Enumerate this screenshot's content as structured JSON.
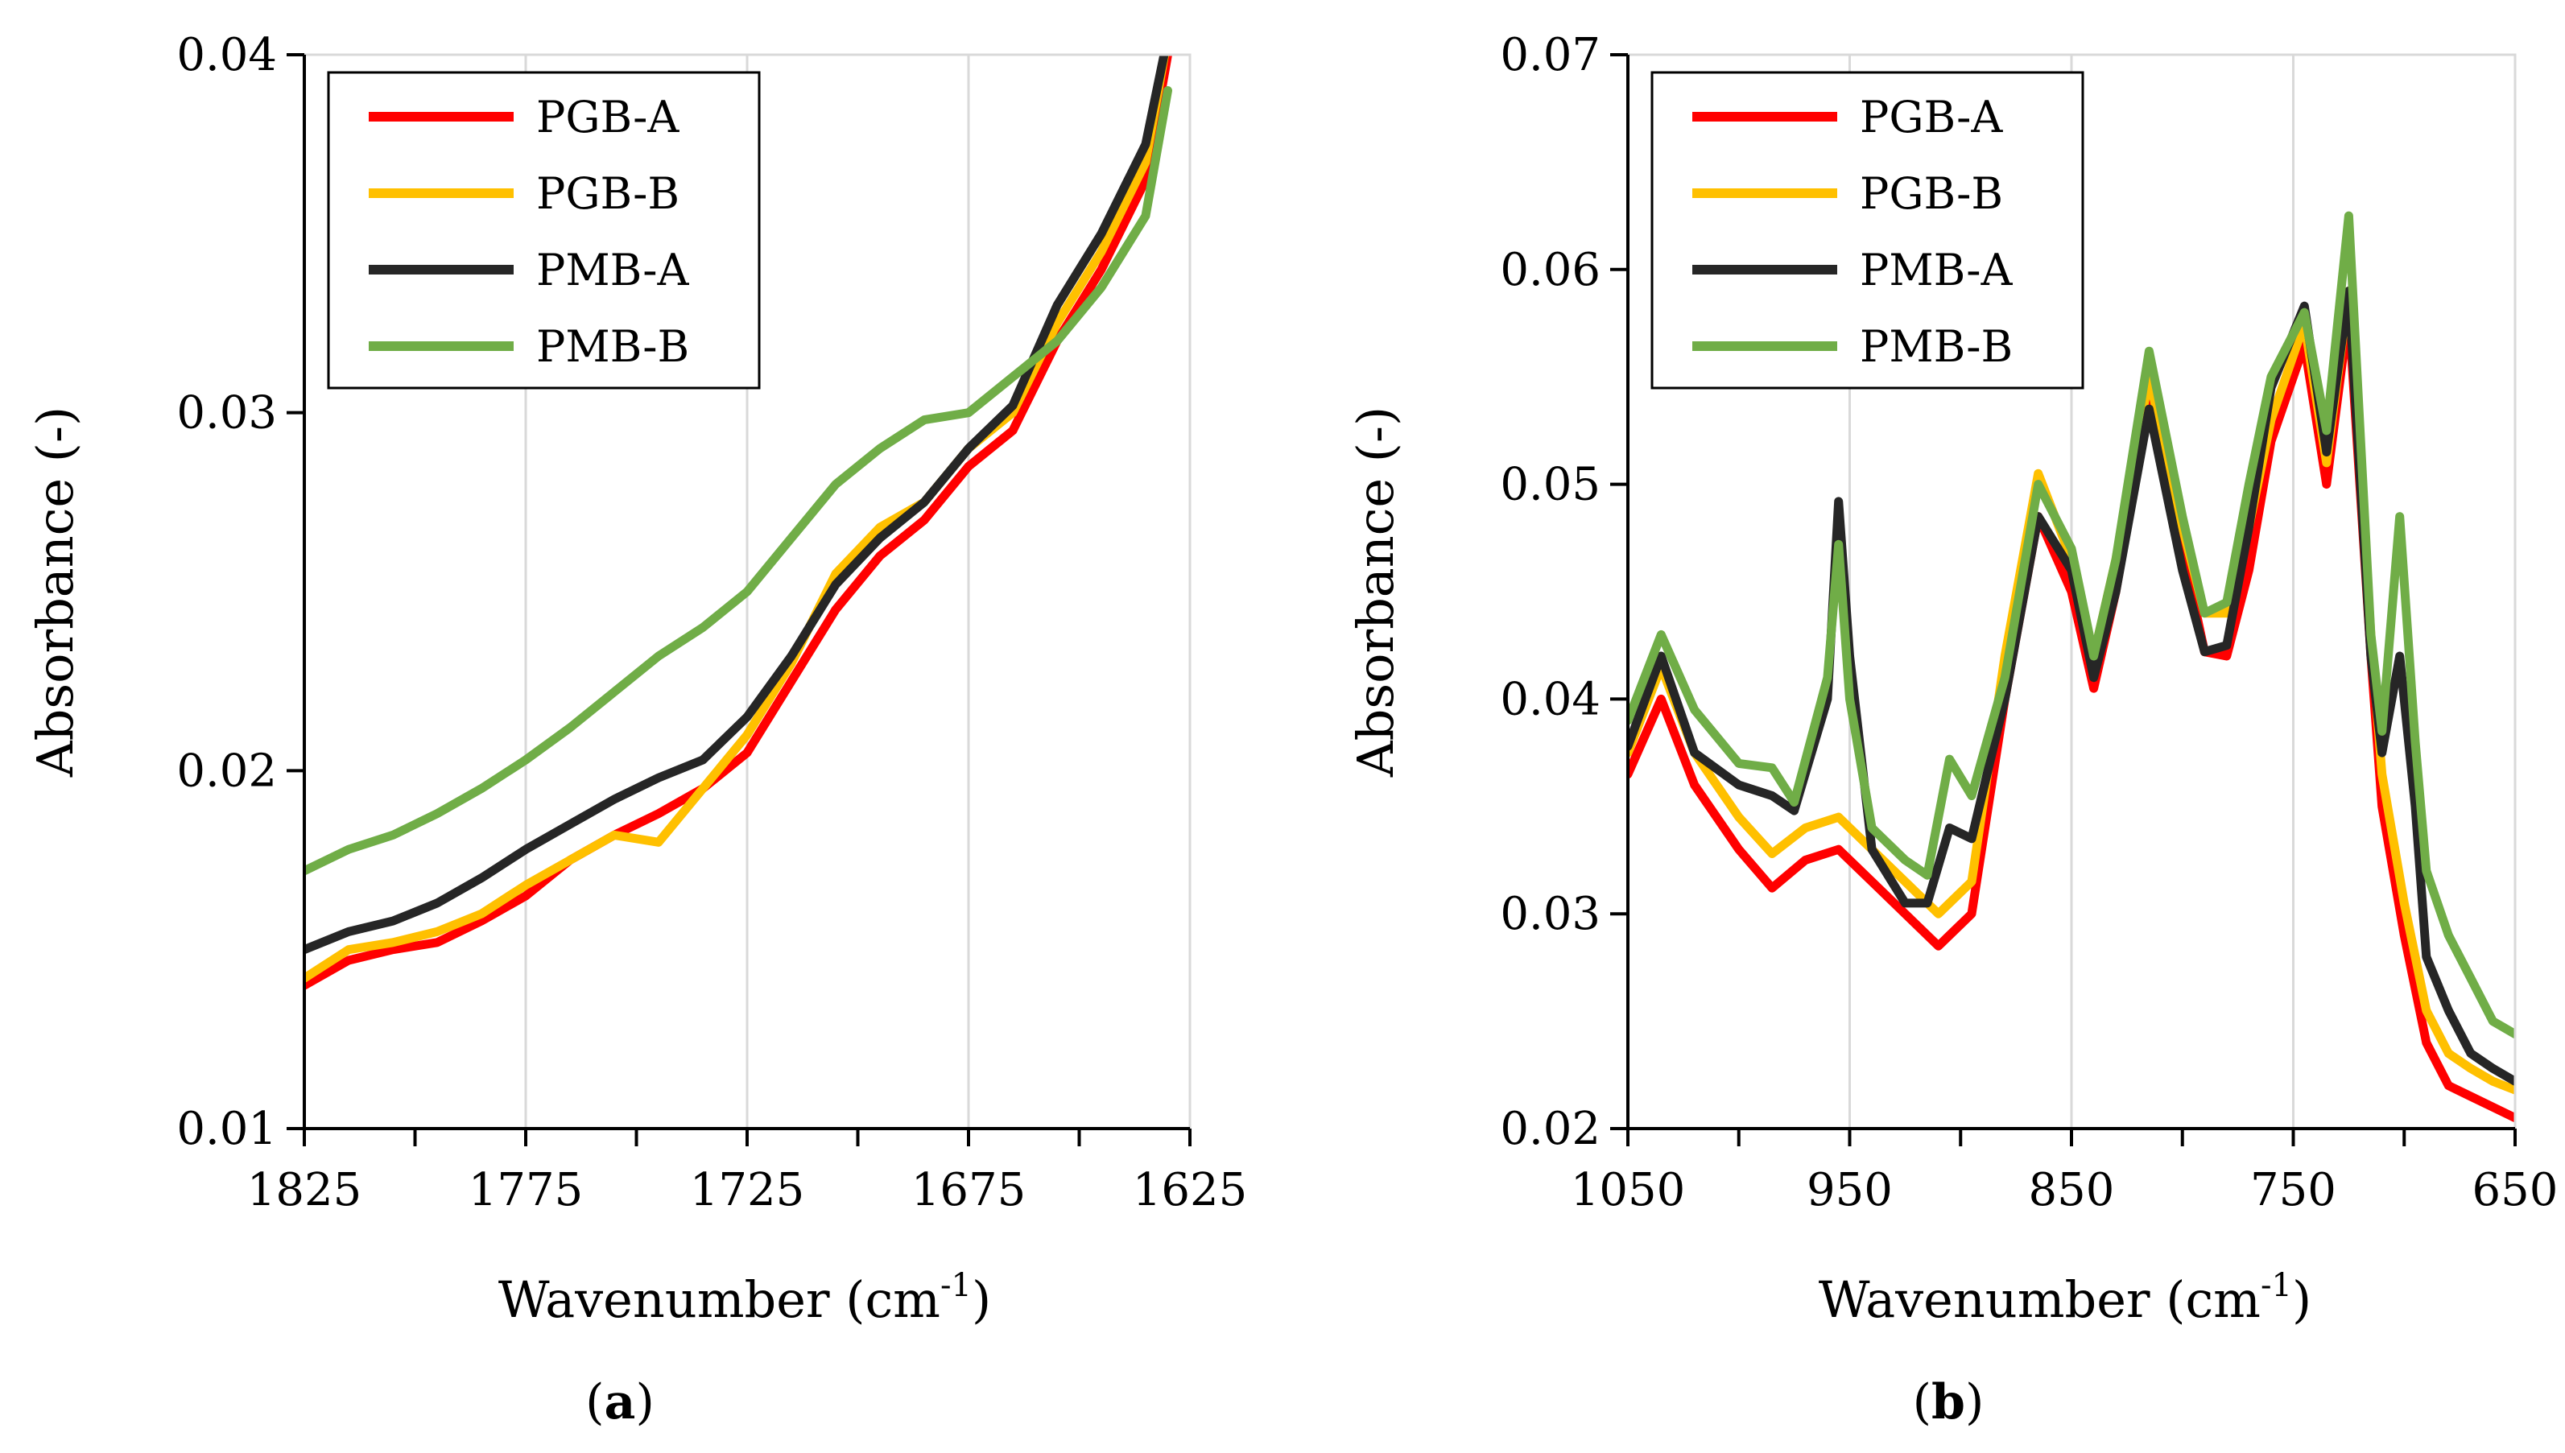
{
  "colors": {
    "PGB-A": "#ff0000",
    "PGB-B": "#ffc000",
    "PMB-A": "#262626",
    "PMB-B": "#70ad47",
    "grid": "#d9d9d9",
    "axis": "#000000"
  },
  "chart_data": [
    {
      "type": "line",
      "panel_label": "(a)",
      "panel_letter": "a",
      "xlabel": "Wavenumber (cm",
      "xlabel_sup": "-1",
      "xlabel_close": ")",
      "ylabel": "Absorbance (-)",
      "xlim": [
        1825,
        1625
      ],
      "ylim": [
        0.01,
        0.04
      ],
      "xticks": [
        1825,
        1775,
        1725,
        1675,
        1625
      ],
      "xtick_labels": [
        "1825",
        "1775",
        "1725",
        "1675",
        "1625"
      ],
      "yticks": [
        0.01,
        0.02,
        0.03,
        0.04
      ],
      "ytick_labels": [
        "0.01",
        "0.02",
        "0.03",
        "0.04"
      ],
      "grid": "vertical",
      "legend": "top-left",
      "legend_entries": [
        "PGB-A",
        "PGB-B",
        "PMB-A",
        "PMB-B"
      ],
      "series": [
        {
          "name": "PGB-A",
          "x": [
            1825,
            1815,
            1805,
            1795,
            1785,
            1775,
            1765,
            1755,
            1745,
            1735,
            1725,
            1715,
            1705,
            1695,
            1685,
            1675,
            1665,
            1655,
            1645,
            1635,
            1630
          ],
          "values": [
            0.014,
            0.0147,
            0.015,
            0.0152,
            0.0158,
            0.0165,
            0.0175,
            0.0182,
            0.0188,
            0.0195,
            0.0205,
            0.0225,
            0.0245,
            0.026,
            0.027,
            0.0285,
            0.0295,
            0.032,
            0.034,
            0.0365,
            0.04
          ]
        },
        {
          "name": "PGB-B",
          "x": [
            1825,
            1815,
            1805,
            1795,
            1785,
            1775,
            1765,
            1755,
            1745,
            1735,
            1725,
            1715,
            1705,
            1695,
            1685,
            1675,
            1665,
            1655,
            1645,
            1635,
            1630
          ],
          "values": [
            0.0142,
            0.015,
            0.0152,
            0.0155,
            0.016,
            0.0168,
            0.0175,
            0.0182,
            0.018,
            0.0195,
            0.021,
            0.023,
            0.0255,
            0.0268,
            0.0275,
            0.029,
            0.03,
            0.0325,
            0.0345,
            0.037,
            0.0405
          ]
        },
        {
          "name": "PMB-A",
          "x": [
            1825,
            1815,
            1805,
            1795,
            1785,
            1775,
            1765,
            1755,
            1745,
            1735,
            1725,
            1715,
            1705,
            1695,
            1685,
            1675,
            1665,
            1655,
            1645,
            1635,
            1630
          ],
          "values": [
            0.015,
            0.0155,
            0.0158,
            0.0163,
            0.017,
            0.0178,
            0.0185,
            0.0192,
            0.0198,
            0.0203,
            0.0215,
            0.0232,
            0.0252,
            0.0265,
            0.0275,
            0.029,
            0.0302,
            0.033,
            0.035,
            0.0375,
            0.0405
          ]
        },
        {
          "name": "PMB-B",
          "x": [
            1825,
            1815,
            1805,
            1795,
            1785,
            1775,
            1765,
            1755,
            1745,
            1735,
            1725,
            1715,
            1705,
            1695,
            1685,
            1675,
            1665,
            1655,
            1645,
            1635,
            1630
          ],
          "values": [
            0.0172,
            0.0178,
            0.0182,
            0.0188,
            0.0195,
            0.0203,
            0.0212,
            0.0222,
            0.0232,
            0.024,
            0.025,
            0.0265,
            0.028,
            0.029,
            0.0298,
            0.03,
            0.031,
            0.032,
            0.0335,
            0.0355,
            0.039
          ]
        }
      ]
    },
    {
      "type": "line",
      "panel_label": "(b)",
      "panel_letter": "b",
      "xlabel": "Wavenumber (cm",
      "xlabel_sup": "-1",
      "xlabel_close": ")",
      "ylabel": "Absorbance (-)",
      "xlim": [
        1050,
        650
      ],
      "ylim": [
        0.02,
        0.07
      ],
      "xticks": [
        1050,
        950,
        850,
        750,
        650
      ],
      "xtick_labels": [
        "1050",
        "950",
        "850",
        "750",
        "650"
      ],
      "yticks": [
        0.02,
        0.03,
        0.04,
        0.05,
        0.06,
        0.07
      ],
      "ytick_labels": [
        "0.02",
        "0.03",
        "0.04",
        "0.05",
        "0.06",
        "0.07"
      ],
      "grid": "vertical",
      "legend": "top-left",
      "legend_entries": [
        "PGB-A",
        "PGB-B",
        "PMB-A",
        "PMB-B"
      ],
      "series": [
        {
          "name": "PGB-A",
          "x": [
            1050,
            1035,
            1020,
            1000,
            985,
            970,
            955,
            940,
            925,
            910,
            895,
            880,
            865,
            850,
            840,
            830,
            815,
            800,
            790,
            780,
            770,
            760,
            745,
            735,
            725,
            715,
            710,
            700,
            690,
            680,
            670,
            660,
            650
          ],
          "values": [
            0.0365,
            0.04,
            0.036,
            0.033,
            0.0312,
            0.0325,
            0.033,
            0.0315,
            0.03,
            0.0285,
            0.03,
            0.04,
            0.0485,
            0.045,
            0.0405,
            0.045,
            0.054,
            0.047,
            0.0422,
            0.042,
            0.046,
            0.052,
            0.0565,
            0.05,
            0.058,
            0.042,
            0.035,
            0.029,
            0.024,
            0.022,
            0.0215,
            0.021,
            0.0205
          ]
        },
        {
          "name": "PGB-B",
          "x": [
            1050,
            1035,
            1020,
            1000,
            985,
            970,
            955,
            940,
            925,
            910,
            895,
            880,
            865,
            850,
            840,
            830,
            815,
            800,
            790,
            780,
            770,
            760,
            745,
            735,
            725,
            715,
            710,
            700,
            690,
            680,
            670,
            660,
            650
          ],
          "values": [
            0.0375,
            0.0415,
            0.0375,
            0.0345,
            0.0328,
            0.034,
            0.0345,
            0.033,
            0.0315,
            0.03,
            0.0315,
            0.042,
            0.0505,
            0.0465,
            0.042,
            0.0465,
            0.055,
            0.048,
            0.044,
            0.044,
            0.048,
            0.053,
            0.0575,
            0.051,
            0.059,
            0.043,
            0.0365,
            0.0305,
            0.0255,
            0.0235,
            0.0228,
            0.0222,
            0.0218
          ]
        },
        {
          "name": "PMB-A",
          "x": [
            1050,
            1035,
            1020,
            1000,
            985,
            975,
            960,
            955,
            950,
            940,
            925,
            915,
            905,
            895,
            880,
            865,
            850,
            840,
            830,
            815,
            800,
            790,
            780,
            770,
            760,
            745,
            735,
            725,
            715,
            710,
            702,
            695,
            690,
            680,
            670,
            660,
            650
          ],
          "values": [
            0.0378,
            0.042,
            0.0375,
            0.036,
            0.0355,
            0.0348,
            0.04,
            0.0492,
            0.042,
            0.033,
            0.0305,
            0.0305,
            0.034,
            0.0335,
            0.04,
            0.0485,
            0.046,
            0.041,
            0.045,
            0.0535,
            0.046,
            0.0422,
            0.0425,
            0.048,
            0.0545,
            0.0583,
            0.0515,
            0.059,
            0.042,
            0.0375,
            0.042,
            0.035,
            0.028,
            0.0255,
            0.0235,
            0.0228,
            0.0222
          ]
        },
        {
          "name": "PMB-B",
          "x": [
            1050,
            1035,
            1020,
            1000,
            985,
            975,
            960,
            955,
            950,
            940,
            925,
            915,
            905,
            895,
            880,
            865,
            850,
            840,
            830,
            815,
            800,
            790,
            780,
            770,
            760,
            745,
            735,
            725,
            715,
            710,
            702,
            695,
            690,
            680,
            670,
            660,
            650
          ],
          "values": [
            0.039,
            0.043,
            0.0395,
            0.037,
            0.0368,
            0.0352,
            0.041,
            0.0472,
            0.04,
            0.034,
            0.0325,
            0.0318,
            0.0372,
            0.0355,
            0.041,
            0.05,
            0.047,
            0.042,
            0.0465,
            0.0562,
            0.0485,
            0.044,
            0.0445,
            0.05,
            0.055,
            0.058,
            0.0525,
            0.0625,
            0.043,
            0.0385,
            0.0485,
            0.038,
            0.032,
            0.029,
            0.027,
            0.025,
            0.0244
          ]
        }
      ]
    }
  ]
}
